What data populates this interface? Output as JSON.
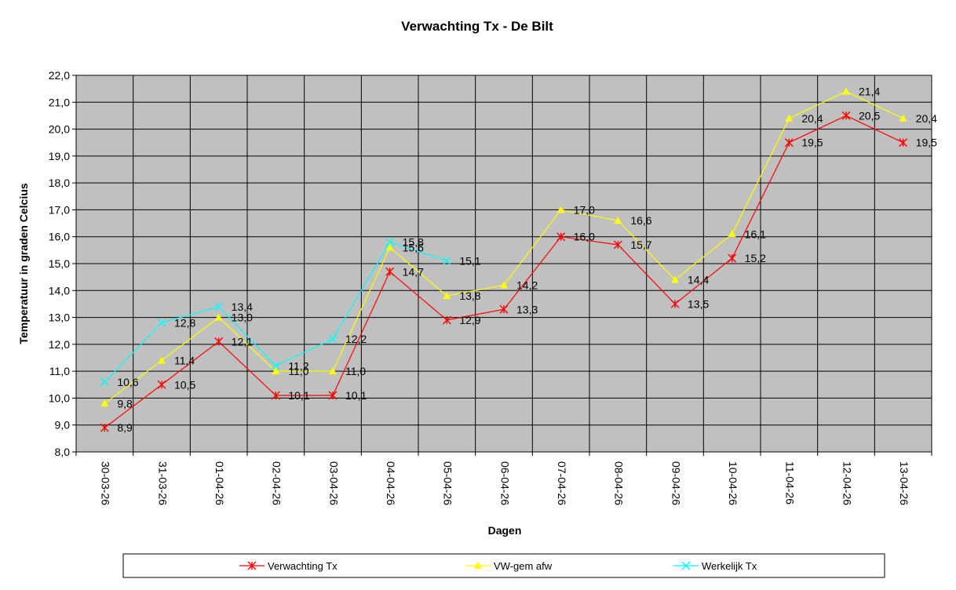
{
  "chart_data": {
    "type": "line",
    "title": "Verwachting Tx - De Bilt",
    "xlabel": "Dagen",
    "ylabel": "Temperatuur in graden Celcius",
    "categories": [
      "30-03-26",
      "31-03-26",
      "01-04-26",
      "02-04-26",
      "03-04-26",
      "04-04-26",
      "05-04-26",
      "06-04-26",
      "07-04-26",
      "08-04-26",
      "09-04-26",
      "10-04-26",
      "11-04-26",
      "12-04-26",
      "13-04-26"
    ],
    "ylim": [
      8.0,
      22.0
    ],
    "ytick_step": 1.0,
    "ytick_labels": [
      "8,0",
      "9,0",
      "10,0",
      "11,0",
      "12,0",
      "13,0",
      "14,0",
      "15,0",
      "16,0",
      "17,0",
      "18,0",
      "19,0",
      "20,0",
      "21,0",
      "22,0"
    ],
    "grid": true,
    "plot_background": "#c0c0c0",
    "legend_position": "bottom",
    "series": [
      {
        "name": "Verwachting Tx",
        "color": "#ff0000",
        "marker": "asterisk",
        "values": [
          8.9,
          10.5,
          12.1,
          10.1,
          10.1,
          14.7,
          12.9,
          13.3,
          16.0,
          15.7,
          13.5,
          15.2,
          19.5,
          20.5,
          19.5
        ],
        "labels": [
          "8,9",
          "10,5",
          "12,1",
          "10,1",
          "10,1",
          "14,7",
          "12,9",
          "13,3",
          "16,0",
          "15,7",
          "13,5",
          "15,2",
          "19,5",
          "20,5",
          "19,5"
        ]
      },
      {
        "name": "VW-gem afw",
        "color": "#ffff00",
        "marker": "triangle",
        "values": [
          9.8,
          11.4,
          13.0,
          11.0,
          11.0,
          15.6,
          13.8,
          14.2,
          17.0,
          16.6,
          14.4,
          16.1,
          20.4,
          21.4,
          20.4
        ],
        "labels": [
          "9,8",
          "11,4",
          "13,0",
          "11,0",
          "11,0",
          "15,6",
          "13,8",
          "14,2",
          "17,0",
          "16,6",
          "14,4",
          "16,1",
          "20,4",
          "21,4",
          "20,4"
        ]
      },
      {
        "name": "Werkelijk Tx",
        "color": "#00ffff",
        "marker": "x",
        "values": [
          10.6,
          12.8,
          13.4,
          11.2,
          12.2,
          15.8,
          15.1,
          null,
          null,
          null,
          null,
          null,
          null,
          null,
          null
        ],
        "labels": [
          "10,6",
          "12,8",
          "13,4",
          "11,2",
          "12,2",
          "15,8",
          "15,1",
          null,
          null,
          null,
          null,
          null,
          null,
          null,
          null
        ]
      }
    ]
  }
}
